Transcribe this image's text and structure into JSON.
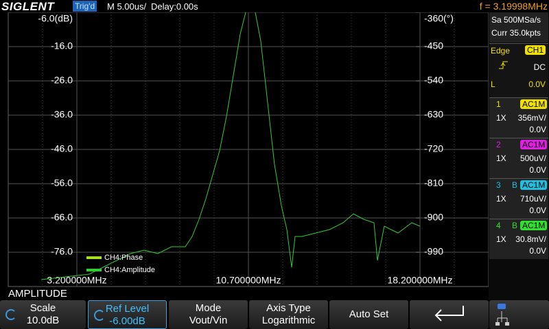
{
  "header": {
    "brand": "SIGLENT",
    "status": "Trig'd",
    "timebase": "M 5.00us/",
    "delay": "Delay:0.00s",
    "frequency": "f = 3.19998MHz"
  },
  "plot": {
    "ylim": [
      -86,
      -6
    ],
    "yticks": [
      {
        "value": -6,
        "label": "-6.0(dB)"
      },
      {
        "value": -16,
        "label": "-16.0"
      },
      {
        "value": -26,
        "label": "-26.0"
      },
      {
        "value": -36,
        "label": "-36.0"
      },
      {
        "value": -46,
        "label": "-46.0"
      },
      {
        "value": -56,
        "label": "-56.0"
      },
      {
        "value": -66,
        "label": "-66.0"
      },
      {
        "value": -76,
        "label": "-76.0"
      }
    ],
    "y2lim": [
      -1080,
      -360
    ],
    "y2ticks": [
      {
        "value": -360,
        "label": "-360(°)"
      },
      -450,
      -540,
      -630,
      -720,
      -810,
      -900,
      -990
    ],
    "xlim": [
      0.2,
      21.2
    ],
    "xticks": [
      {
        "value": 3.2,
        "label": "3.200000MHz"
      },
      {
        "value": 10.7,
        "label": "10.700000MHz"
      },
      {
        "value": 18.2,
        "label": "18.200000MHz"
      }
    ],
    "series": [
      {
        "name": "CH4:Phase",
        "color": "#a8e020",
        "x": [],
        "values": []
      },
      {
        "name": "CH4:Amplitude",
        "color": "#33cc33",
        "x": [
          1.64,
          3.74,
          4.34,
          4.94,
          5.54,
          6.14,
          6.74,
          7.34,
          7.94,
          8.24,
          8.54,
          8.84,
          9.14,
          9.44,
          9.74,
          10.04,
          10.34,
          10.58,
          10.79,
          11.0,
          11.24,
          11.54,
          11.84,
          12.14,
          12.38,
          12.59,
          12.74,
          13.04,
          13.64,
          14.24,
          14.84,
          15.29,
          15.74,
          16.19,
          16.34,
          16.64,
          17.24,
          17.84,
          18.2
        ],
        "values": [
          -84,
          -82.4,
          -80.4,
          -78.4,
          -76.4,
          -75.4,
          -76.4,
          -74.4,
          -74.4,
          -71.4,
          -66.4,
          -60.4,
          -53.4,
          -46.4,
          -36.4,
          -24.4,
          -12.4,
          -6.0,
          -5.4,
          -6.0,
          -14.4,
          -32.4,
          -50.4,
          -62.4,
          -69.4,
          -80.4,
          -71.4,
          -71.4,
          -70.4,
          -69.4,
          -67.4,
          -64.8,
          -66.4,
          -67.4,
          -78.4,
          -68.4,
          -70.4,
          -67.4,
          -68.4
        ]
      }
    ]
  },
  "acquisition": {
    "rate": "Sa 500MSa/s",
    "depth": "Curr 35.0kpts"
  },
  "trigger": {
    "type": "Edge",
    "source": "CH1",
    "coupling": "DC",
    "level_label": "L",
    "level": "0.0V"
  },
  "channels": [
    {
      "number": "1",
      "coupling": "AC1M",
      "probe": "1X",
      "scale": "356mV/",
      "offset": "0.0V"
    },
    {
      "number": "2",
      "coupling": "AC1M",
      "probe": "1X",
      "scale": "500uV/",
      "offset": "0.0V"
    },
    {
      "number": "3",
      "bw": "B",
      "coupling": "AC1M",
      "probe": "1X",
      "scale": "710uV/",
      "offset": "0.0V"
    },
    {
      "number": "4",
      "bw": "B",
      "coupling": "AC1M",
      "probe": "1X",
      "scale": "30.8mV/",
      "offset": "0.0V"
    }
  ],
  "menu": {
    "title": "AMPLITUDE",
    "items": [
      {
        "label": "Scale",
        "value": "10.0dB"
      },
      {
        "label": "Ref Level",
        "value": "-6.00dB"
      },
      {
        "label": "Mode",
        "value": "Vout/Vin"
      },
      {
        "label": "Axis Type",
        "value": "Logarithmic"
      },
      {
        "label": "Auto Set"
      }
    ]
  }
}
